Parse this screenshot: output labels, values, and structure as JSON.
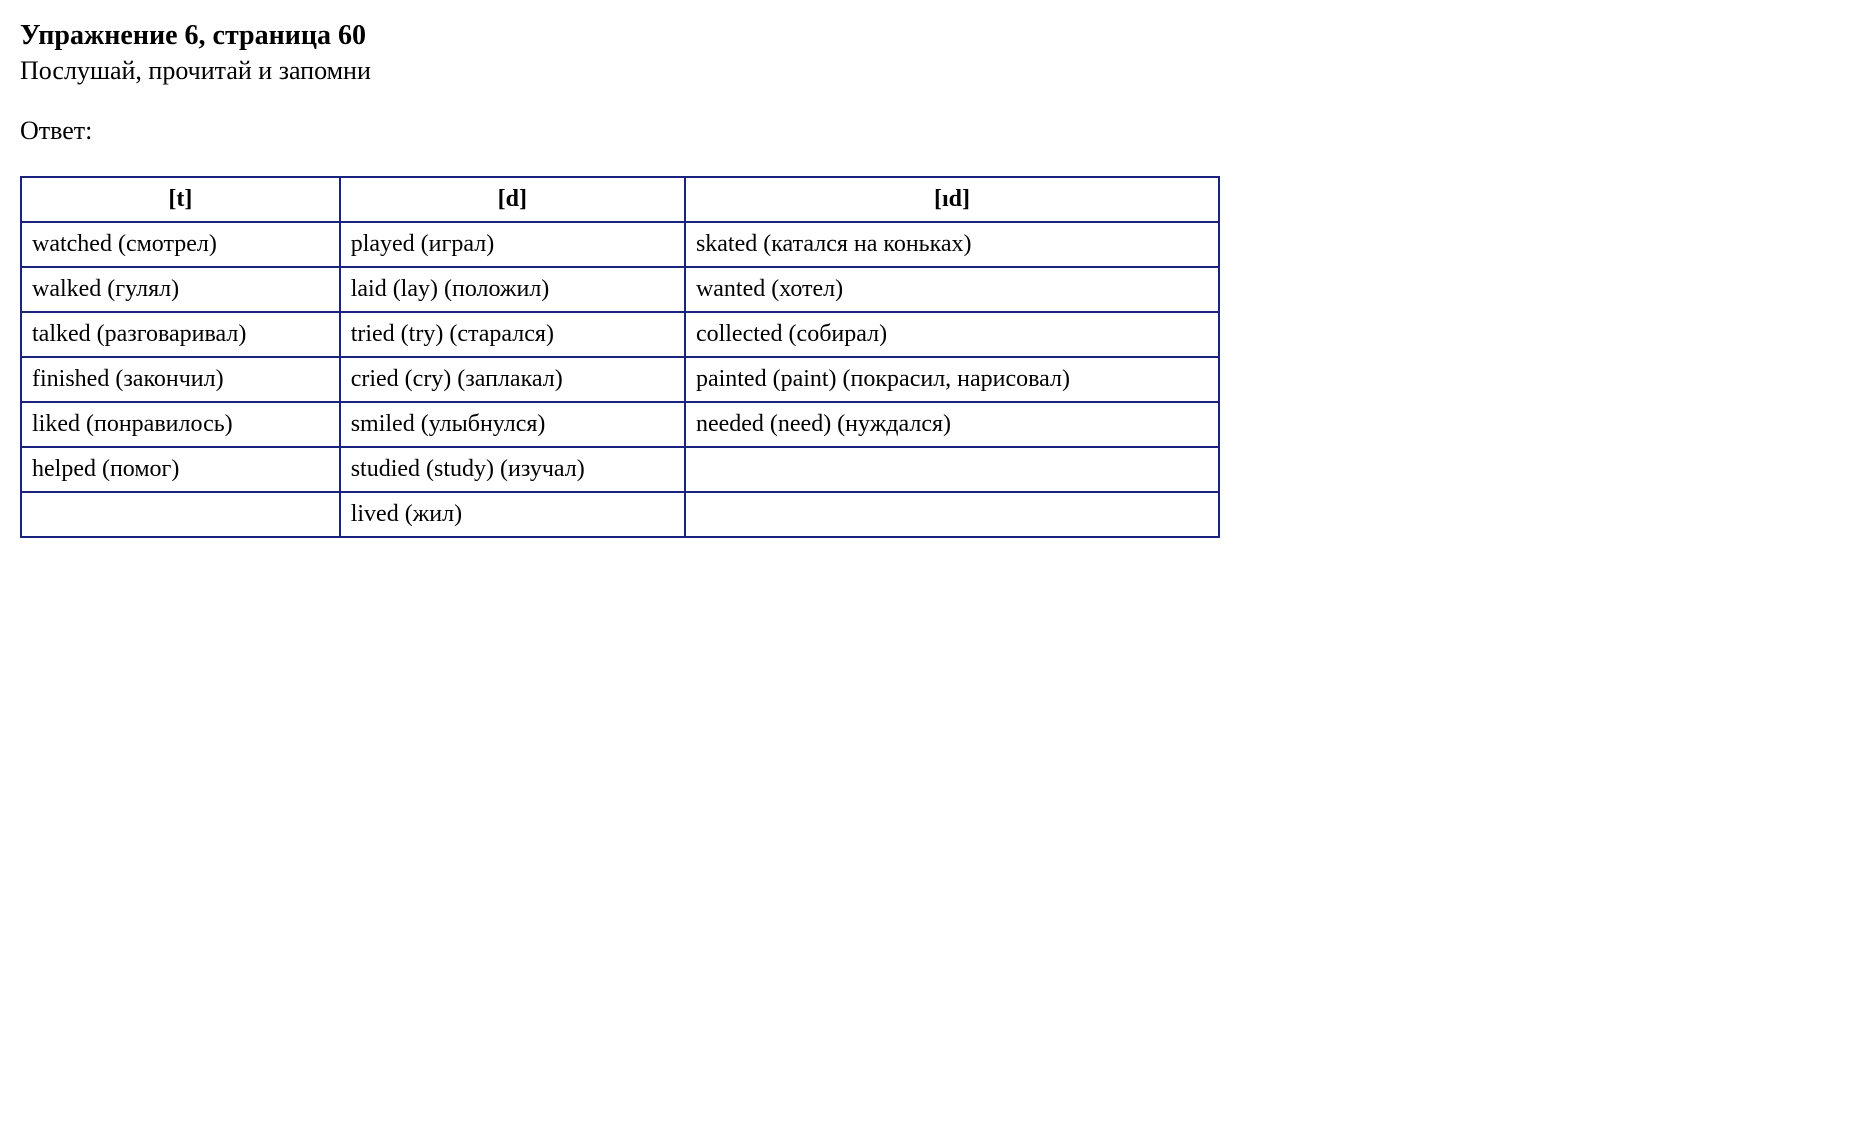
{
  "heading": {
    "title": "Упражнение 6, страница 60",
    "subtitle": "Послушай, прочитай и запомни"
  },
  "answer_label": "Ответ:",
  "table": {
    "border_color": "#1a237e",
    "background_color": "#ffffff",
    "text_color": "#000000",
    "header_fontsize": 24,
    "cell_fontsize": 24,
    "columns": [
      "[t]",
      "[d]",
      "[ıd]"
    ],
    "rows": [
      [
        "watched (смотрел)",
        "played (играл)",
        "skated (катался на коньках)"
      ],
      [
        "walked (гулял)",
        "laid (lay) (положил)",
        "wanted (хотел)"
      ],
      [
        "talked (разговаривал)",
        "tried (try) (старался)",
        "collected (собирал)"
      ],
      [
        "finished (закончил)",
        "cried (cry) (заплакал)",
        "painted (paint) (покрасил, нарисовал)"
      ],
      [
        "liked (понравилось)",
        "smiled (улыбнулся)",
        "needed (need) (нуждался)"
      ],
      [
        "helped (помог)",
        "studied (study) (изучал)",
        ""
      ],
      [
        "",
        "lived (жил)",
        ""
      ]
    ]
  }
}
